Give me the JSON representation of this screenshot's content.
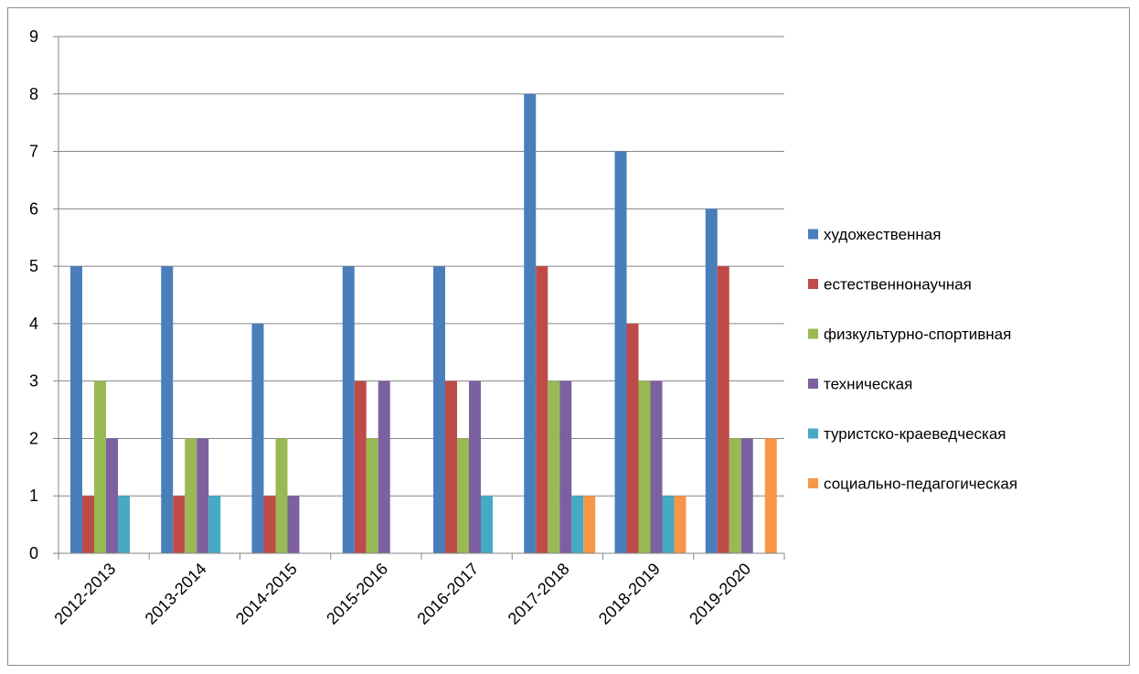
{
  "chart_data": {
    "type": "bar",
    "title": "",
    "xlabel": "",
    "ylabel": "",
    "ylim": [
      0,
      9
    ],
    "yticks": [
      0,
      1,
      2,
      3,
      4,
      5,
      6,
      7,
      8,
      9
    ],
    "grid": true,
    "legend_position": "right",
    "categories": [
      "2012-2013",
      "2013-2014",
      "2014-2015",
      "2015-2016",
      "2016-2017",
      "2017-2018",
      "2018-2019",
      "2019-2020"
    ],
    "series": [
      {
        "name": "художественная",
        "color": "#4A7EBB",
        "values": [
          5,
          5,
          4,
          5,
          5,
          8,
          7,
          6
        ]
      },
      {
        "name": "естественнонаучная",
        "color": "#BE4B48",
        "values": [
          1,
          1,
          1,
          3,
          3,
          5,
          4,
          5
        ]
      },
      {
        "name": "физкультурно-спортивная",
        "color": "#98B954",
        "values": [
          3,
          2,
          2,
          2,
          2,
          3,
          3,
          2
        ]
      },
      {
        "name": "техническая",
        "color": "#7D60A0",
        "values": [
          2,
          2,
          1,
          3,
          3,
          3,
          3,
          2
        ]
      },
      {
        "name": "туристско-краеведческая",
        "color": "#46AAC5",
        "values": [
          1,
          1,
          0,
          0,
          1,
          1,
          1,
          0
        ]
      },
      {
        "name": "социально-педагогическая",
        "color": "#F79646",
        "values": [
          0,
          0,
          0,
          0,
          0,
          1,
          1,
          2
        ]
      }
    ]
  }
}
